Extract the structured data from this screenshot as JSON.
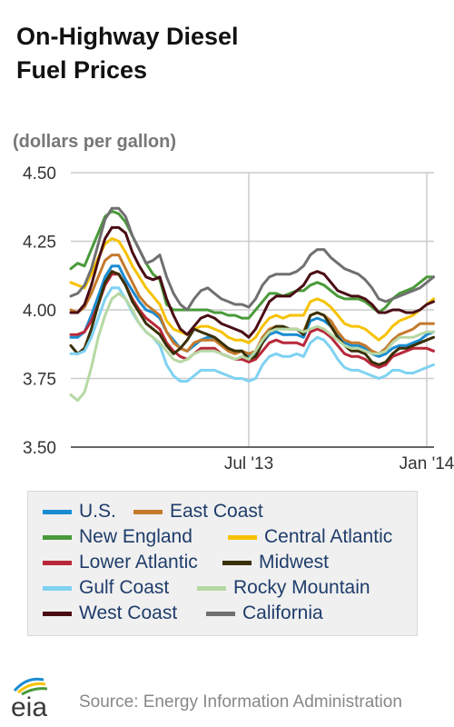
{
  "header": {
    "title_line1": "On-Highway Diesel",
    "title_line2": "Fuel Prices",
    "units": "(dollars per gallon)"
  },
  "footer": {
    "logo_text": "eia",
    "source": "Source: Energy Information Administration"
  },
  "chart_data": {
    "type": "line",
    "title": "On-Highway Diesel Fuel Prices",
    "ylabel": "(dollars per gallon)",
    "ylim": [
      3.5,
      4.5
    ],
    "y_ticks": [
      "3.50",
      "3.75",
      "4.00",
      "4.25",
      "4.50"
    ],
    "y_tick_values": [
      3.5,
      3.75,
      4.0,
      4.25,
      4.5
    ],
    "x_ticks": [
      "Jul '13",
      "Jan '14"
    ],
    "x_tick_positions": [
      26,
      52
    ],
    "x_range": [
      0,
      52
    ],
    "grid": true,
    "legend_position": "bottom",
    "x": [
      0,
      1,
      2,
      3,
      4,
      5,
      6,
      7,
      8,
      9,
      10,
      11,
      12,
      13,
      14,
      15,
      16,
      17,
      18,
      19,
      20,
      21,
      22,
      23,
      24,
      25,
      26,
      27,
      28,
      29,
      30,
      31,
      32,
      33,
      34,
      35,
      36,
      37,
      38,
      39,
      40,
      41,
      42,
      43,
      44,
      45,
      46,
      47,
      48,
      49,
      50,
      51,
      52,
      53
    ],
    "series": [
      {
        "name": "U.S.",
        "color": "#1a8cd1",
        "values": [
          3.9,
          3.9,
          3.92,
          3.98,
          4.05,
          4.12,
          4.16,
          4.16,
          4.11,
          4.07,
          4.03,
          4.0,
          3.99,
          3.97,
          3.92,
          3.89,
          3.86,
          3.85,
          3.87,
          3.89,
          3.9,
          3.9,
          3.88,
          3.86,
          3.85,
          3.85,
          3.83,
          3.84,
          3.88,
          3.91,
          3.92,
          3.91,
          3.91,
          3.91,
          3.9,
          3.96,
          3.97,
          3.96,
          3.94,
          3.91,
          3.88,
          3.87,
          3.87,
          3.86,
          3.84,
          3.83,
          3.84,
          3.86,
          3.87,
          3.87,
          3.88,
          3.89,
          3.91,
          3.92
        ]
      },
      {
        "name": "East Coast",
        "color": "#c47a2c",
        "values": [
          4.0,
          3.99,
          4.01,
          4.06,
          4.12,
          4.18,
          4.2,
          4.2,
          4.15,
          4.1,
          4.05,
          4.02,
          4.0,
          3.98,
          3.92,
          3.88,
          3.86,
          3.85,
          3.88,
          3.89,
          3.89,
          3.89,
          3.87,
          3.85,
          3.84,
          3.85,
          3.84,
          3.85,
          3.9,
          3.93,
          3.94,
          3.93,
          3.93,
          3.93,
          3.92,
          3.98,
          3.99,
          3.98,
          3.96,
          3.92,
          3.89,
          3.88,
          3.88,
          3.87,
          3.85,
          3.84,
          3.86,
          3.89,
          3.91,
          3.92,
          3.93,
          3.95,
          3.95,
          3.95
        ]
      },
      {
        "name": "New England",
        "color": "#4a9a3a",
        "values": [
          4.15,
          4.17,
          4.16,
          4.22,
          4.28,
          4.34,
          4.36,
          4.35,
          4.32,
          4.27,
          4.22,
          4.17,
          4.13,
          4.11,
          4.02,
          4.0,
          4.0,
          4.0,
          4.0,
          4.0,
          4.0,
          3.99,
          3.99,
          3.98,
          3.98,
          3.97,
          3.97,
          4.0,
          4.03,
          4.06,
          4.06,
          4.05,
          4.06,
          4.07,
          4.07,
          4.09,
          4.1,
          4.09,
          4.07,
          4.05,
          4.04,
          4.04,
          4.04,
          4.03,
          4.01,
          3.99,
          4.01,
          4.04,
          4.06,
          4.07,
          4.08,
          4.1,
          4.12,
          4.12
        ]
      },
      {
        "name": "Central Atlantic",
        "color": "#f6c200",
        "values": [
          4.1,
          4.09,
          4.08,
          4.13,
          4.19,
          4.24,
          4.26,
          4.25,
          4.21,
          4.16,
          4.12,
          4.08,
          4.05,
          4.02,
          3.96,
          3.93,
          3.92,
          3.91,
          3.93,
          3.94,
          3.94,
          3.93,
          3.92,
          3.9,
          3.89,
          3.89,
          3.88,
          3.9,
          3.94,
          3.97,
          3.98,
          3.97,
          3.98,
          3.98,
          3.98,
          4.03,
          4.04,
          4.03,
          4.01,
          3.98,
          3.95,
          3.94,
          3.94,
          3.93,
          3.91,
          3.89,
          3.91,
          3.94,
          3.96,
          3.97,
          3.98,
          4.0,
          4.02,
          4.04
        ]
      },
      {
        "name": "Lower Atlantic",
        "color": "#b8283a",
        "values": [
          3.91,
          3.91,
          3.92,
          3.96,
          4.02,
          4.09,
          4.13,
          4.13,
          4.09,
          4.04,
          4.0,
          3.97,
          3.95,
          3.93,
          3.88,
          3.85,
          3.83,
          3.82,
          3.84,
          3.86,
          3.86,
          3.86,
          3.84,
          3.83,
          3.82,
          3.82,
          3.81,
          3.82,
          3.85,
          3.88,
          3.89,
          3.88,
          3.88,
          3.88,
          3.87,
          3.92,
          3.93,
          3.92,
          3.9,
          3.87,
          3.84,
          3.83,
          3.83,
          3.82,
          3.8,
          3.79,
          3.8,
          3.83,
          3.84,
          3.85,
          3.86,
          3.86,
          3.86,
          3.85
        ]
      },
      {
        "name": "Midwest",
        "color": "#3a2f05",
        "values": [
          3.87,
          3.84,
          3.86,
          3.93,
          4.02,
          4.1,
          4.14,
          4.13,
          4.09,
          4.03,
          3.99,
          3.95,
          3.93,
          3.91,
          3.87,
          3.84,
          3.86,
          3.89,
          3.93,
          3.92,
          3.91,
          3.9,
          3.88,
          3.86,
          3.85,
          3.85,
          3.82,
          3.83,
          3.88,
          3.92,
          3.94,
          3.94,
          3.93,
          3.93,
          3.91,
          3.98,
          3.99,
          3.98,
          3.94,
          3.9,
          3.87,
          3.85,
          3.85,
          3.84,
          3.81,
          3.8,
          3.81,
          3.84,
          3.86,
          3.86,
          3.87,
          3.88,
          3.89,
          3.9
        ]
      },
      {
        "name": "Gulf Coast",
        "color": "#7fd2f2",
        "values": [
          3.84,
          3.84,
          3.85,
          3.9,
          3.97,
          4.04,
          4.08,
          4.08,
          4.04,
          3.99,
          3.95,
          3.92,
          3.9,
          3.87,
          3.8,
          3.76,
          3.74,
          3.74,
          3.76,
          3.78,
          3.78,
          3.78,
          3.77,
          3.76,
          3.75,
          3.75,
          3.74,
          3.75,
          3.8,
          3.83,
          3.84,
          3.83,
          3.83,
          3.84,
          3.83,
          3.88,
          3.9,
          3.89,
          3.86,
          3.82,
          3.79,
          3.78,
          3.78,
          3.77,
          3.76,
          3.75,
          3.76,
          3.78,
          3.78,
          3.77,
          3.77,
          3.78,
          3.79,
          3.8
        ]
      },
      {
        "name": "Rocky Mountain",
        "color": "#b7d8a4",
        "values": [
          3.69,
          3.67,
          3.7,
          3.79,
          3.9,
          3.98,
          4.04,
          4.06,
          4.04,
          4.0,
          3.95,
          3.92,
          3.9,
          3.88,
          3.85,
          3.82,
          3.81,
          3.82,
          3.84,
          3.85,
          3.85,
          3.85,
          3.84,
          3.83,
          3.82,
          3.83,
          3.82,
          3.85,
          3.89,
          3.92,
          3.93,
          3.93,
          3.93,
          3.93,
          3.92,
          3.93,
          3.94,
          3.93,
          3.91,
          3.89,
          3.87,
          3.86,
          3.86,
          3.85,
          3.84,
          3.84,
          3.85,
          3.88,
          3.9,
          3.9,
          3.9,
          3.91,
          3.92,
          3.92
        ]
      },
      {
        "name": "West Coast",
        "color": "#4a0d14",
        "values": [
          3.99,
          3.99,
          4.02,
          4.09,
          4.18,
          4.26,
          4.3,
          4.3,
          4.28,
          4.21,
          4.16,
          4.12,
          4.11,
          4.12,
          4.04,
          3.98,
          3.93,
          3.91,
          3.94,
          3.97,
          3.98,
          3.97,
          3.95,
          3.94,
          3.93,
          3.92,
          3.9,
          3.93,
          3.98,
          4.03,
          4.05,
          4.05,
          4.05,
          4.07,
          4.09,
          4.13,
          4.14,
          4.13,
          4.1,
          4.07,
          4.06,
          4.05,
          4.05,
          4.04,
          4.02,
          3.99,
          3.99,
          4.0,
          4.0,
          3.99,
          3.99,
          4.0,
          4.02,
          4.03
        ]
      },
      {
        "name": "California",
        "color": "#707070",
        "values": [
          4.05,
          4.06,
          4.09,
          4.15,
          4.24,
          4.33,
          4.37,
          4.37,
          4.34,
          4.27,
          4.22,
          4.17,
          4.18,
          4.2,
          4.12,
          4.06,
          4.02,
          4.0,
          4.04,
          4.07,
          4.08,
          4.06,
          4.04,
          4.03,
          4.02,
          4.02,
          4.01,
          4.04,
          4.09,
          4.12,
          4.13,
          4.13,
          4.13,
          4.14,
          4.16,
          4.2,
          4.22,
          4.22,
          4.19,
          4.17,
          4.15,
          4.14,
          4.13,
          4.11,
          4.08,
          4.04,
          4.03,
          4.04,
          4.05,
          4.06,
          4.07,
          4.08,
          4.1,
          4.12
        ]
      }
    ]
  }
}
